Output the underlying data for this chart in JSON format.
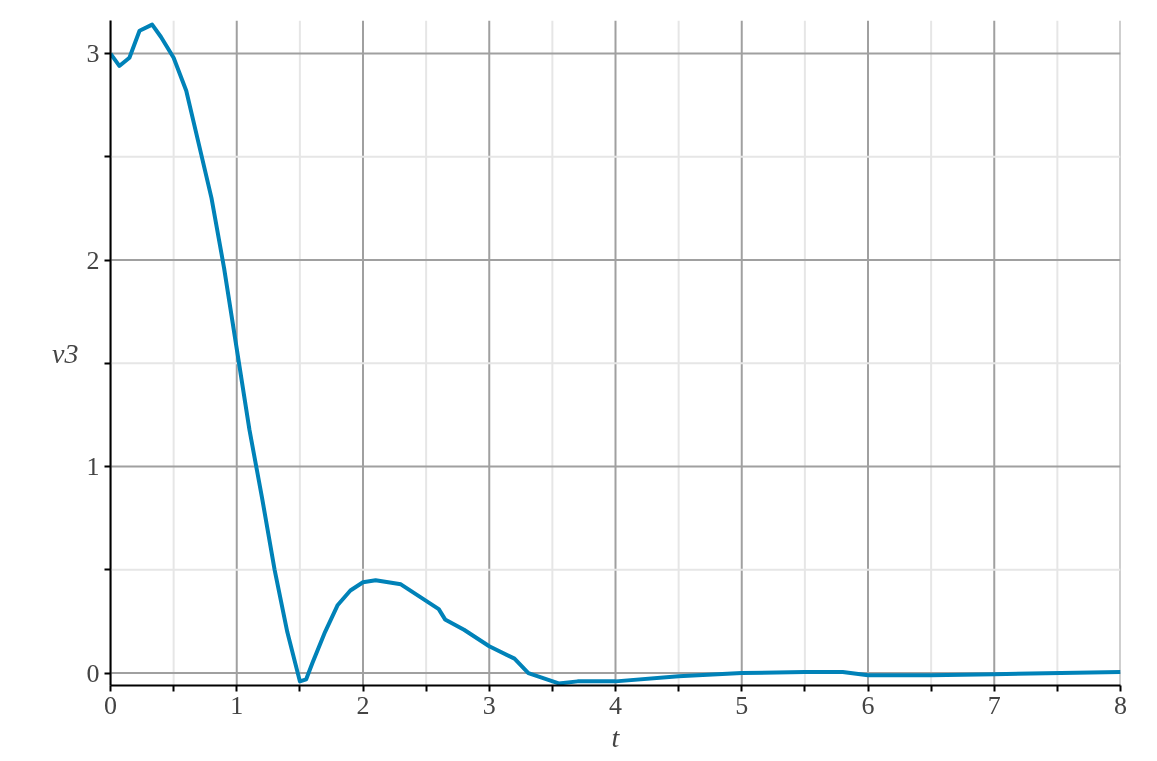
{
  "chart_data": {
    "type": "line",
    "xlabel": "t",
    "ylabel": "v3",
    "x": [
      0,
      0.07,
      0.15,
      0.23,
      0.33,
      0.4,
      0.5,
      0.6,
      0.7,
      0.8,
      0.9,
      1.0,
      1.1,
      1.2,
      1.3,
      1.4,
      1.5,
      1.55,
      1.6,
      1.7,
      1.8,
      1.9,
      2.0,
      2.1,
      2.3,
      2.5,
      2.6,
      2.65,
      2.8,
      3.0,
      3.2,
      3.31,
      3.55,
      3.7,
      4.0,
      4.5,
      5.0,
      5.5,
      5.8,
      6.0,
      6.5,
      7.0,
      8.0
    ],
    "series": [
      {
        "color": "#0082b8",
        "values": [
          3.0,
          2.94,
          2.98,
          3.11,
          3.14,
          3.08,
          2.98,
          2.82,
          2.56,
          2.3,
          1.96,
          1.57,
          1.18,
          0.85,
          0.5,
          0.2,
          -0.04,
          -0.03,
          0.05,
          0.2,
          0.33,
          0.4,
          0.44,
          0.45,
          0.43,
          0.35,
          0.31,
          0.26,
          0.21,
          0.13,
          0.07,
          0.0,
          -0.05,
          -0.04,
          -0.04,
          -0.015,
          0.0,
          0.005,
          0.005,
          -0.01,
          -0.01,
          -0.005,
          0.005
        ]
      }
    ],
    "xlim": [
      0,
      8
    ],
    "ylim": [
      -0.06,
      3.16
    ],
    "xticks": [
      0,
      {
        "value": 0.5,
        "label": null
      },
      1,
      {
        "value": 1.5,
        "label": null
      },
      2,
      {
        "value": 2.5,
        "label": null
      },
      3,
      {
        "value": 3.5,
        "label": null
      },
      4,
      {
        "value": 4.5,
        "label": null
      },
      5,
      {
        "value": 5.5,
        "label": null
      },
      6,
      {
        "value": 6.5,
        "label": null
      },
      7,
      {
        "value": 7.5,
        "label": null
      },
      8
    ],
    "yticks": [
      0,
      {
        "value": 0.5,
        "label": null
      },
      1,
      {
        "value": 1.5,
        "label": null
      },
      2,
      {
        "value": 2.5,
        "label": null
      },
      3
    ],
    "grid": true,
    "line_style": "solid"
  }
}
